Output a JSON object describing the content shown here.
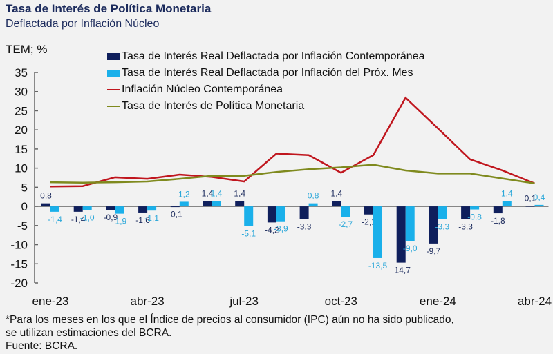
{
  "header": {
    "title": "Tasa de Interés de Política Monetaria",
    "subtitle": "Deflactada por Inflación Núcleo",
    "unit": "TEM; %"
  },
  "footnote": {
    "line1": "*Para los meses en los que el Índice de precios al consumidor (IPC) aún no ha sido publicado,",
    "line2": "se utilizan estimaciones del BCRA.",
    "source": "Fuente: BCRA."
  },
  "colors": {
    "dark_bar": "#0f1f5c",
    "light_bar": "#1ab0ea",
    "red_line": "#c0161e",
    "green_line": "#7f8a1e",
    "background": "#f2f2f2",
    "title": "#1b2a5c"
  },
  "chart_data": {
    "type": "bar",
    "title": "Tasa de Interés de Política Monetaria",
    "subtitle": "Deflactada por Inflación Núcleo",
    "ylabel": "TEM; %",
    "xlabel": "",
    "ylim": [
      -20,
      35
    ],
    "yticks": [
      35,
      30,
      25,
      20,
      15,
      10,
      5,
      0,
      -5,
      -10,
      -15,
      -20
    ],
    "grid": false,
    "legend_position": "top",
    "categories": [
      "ene-23",
      "feb-23",
      "mar-23",
      "abr-23",
      "may-23",
      "jun-23",
      "jul-23",
      "ago-23",
      "sep-23",
      "oct-23",
      "nov-23",
      "dic-23",
      "ene-24",
      "feb-24",
      "mar-24",
      "abr-24"
    ],
    "xtick_labels": [
      {
        "index": 0,
        "label": "ene-23"
      },
      {
        "index": 3,
        "label": "abr-23"
      },
      {
        "index": 6,
        "label": "jul-23"
      },
      {
        "index": 9,
        "label": "oct-23"
      },
      {
        "index": 12,
        "label": "ene-24"
      },
      {
        "index": 15,
        "label": "abr-24"
      }
    ],
    "series": [
      {
        "name": "Tasa de Interés Real Deflactada por Inflación Contemporánea",
        "kind": "bar",
        "values": [
          0.8,
          -1.4,
          -0.9,
          -1.6,
          -0.1,
          1.4,
          1.4,
          -4.2,
          -3.3,
          1.4,
          -2.1,
          -14.7,
          -9.7,
          -3.3,
          -1.8,
          0.1
        ],
        "labels": [
          "0,8",
          "-1,4",
          "-0,9",
          "-1,6",
          "-0,1",
          "1,4",
          "1,4",
          "-4,2",
          "-3,3",
          "1,4",
          "-2,1",
          "-14,7",
          "-9,7",
          "-3,3",
          "-1,8",
          "0,1"
        ]
      },
      {
        "name": "Tasa de Interés Real Deflactada por Inflación del Próx. Mes",
        "kind": "bar",
        "values": [
          -1.4,
          -1.0,
          -1.9,
          -1.1,
          1.2,
          1.4,
          -5.1,
          -3.9,
          0.8,
          -2.7,
          -13.5,
          -9.0,
          -3.3,
          -0.8,
          1.4,
          0.4
        ],
        "labels": [
          "-1,4",
          "-1,0",
          "-1,9",
          "-1,1",
          "1,2",
          "1,4",
          "-5,1",
          "-3,9",
          "0,8",
          "-2,7",
          "-13,5",
          "-9,0",
          "-3,3",
          "-0,8",
          "1,4",
          "0,4"
        ]
      },
      {
        "name": "Inflación Núcleo Contemporánea",
        "kind": "line",
        "values": [
          5.2,
          5.3,
          7.6,
          7.2,
          8.3,
          7.7,
          6.5,
          13.8,
          13.4,
          8.8,
          13.4,
          28.4,
          20.4,
          12.3,
          9.4,
          6.0
        ]
      },
      {
        "name": "Tasa de Interés de Política Monetaria",
        "kind": "line",
        "values": [
          6.3,
          6.2,
          6.3,
          6.5,
          7.2,
          8.0,
          8.0,
          9.0,
          9.7,
          10.2,
          10.9,
          9.4,
          8.6,
          8.6,
          7.3,
          6.0
        ]
      }
    ]
  }
}
